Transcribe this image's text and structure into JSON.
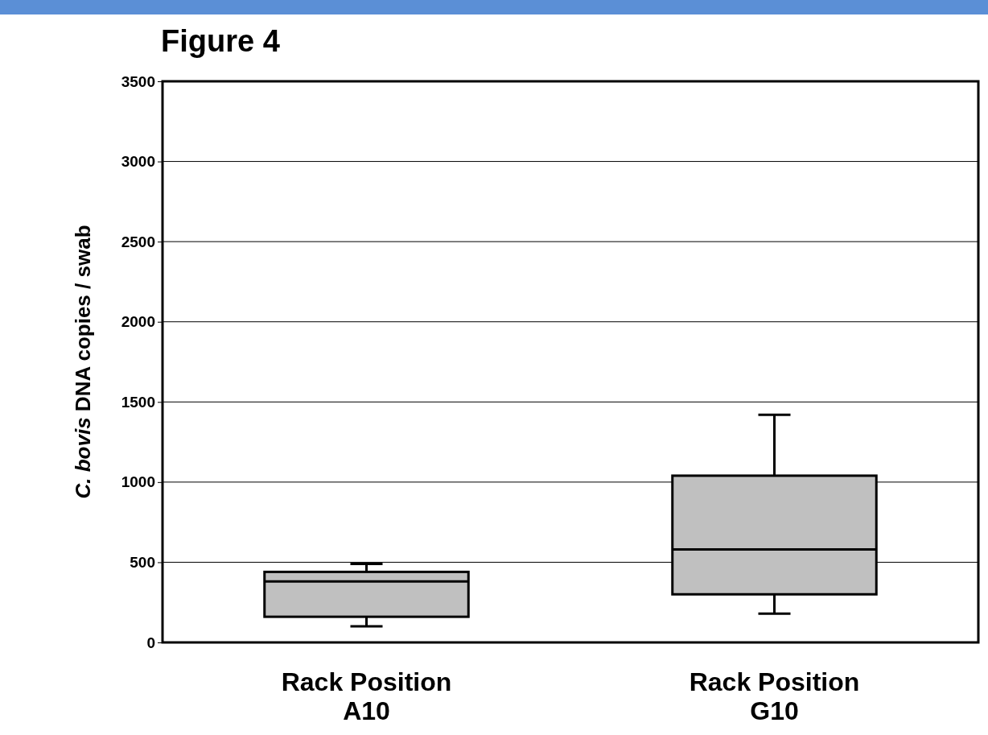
{
  "chart_data": {
    "type": "box",
    "title": "Figure 4",
    "ylabel": "C. bovis DNA copies / swab",
    "categories": [
      "Rack Position\nA10",
      "Rack Position\nG10"
    ],
    "boxes": [
      {
        "low": 100,
        "q1": 160,
        "median": 380,
        "q3": 440,
        "high": 490
      },
      {
        "low": 180,
        "q1": 300,
        "median": 580,
        "q3": 1040,
        "high": 1420
      }
    ],
    "color": "#c0c0c0",
    "ylim": [
      0,
      3500
    ],
    "yticks": [
      0,
      500,
      1000,
      1500,
      2000,
      2500,
      3000,
      3500
    ],
    "grid": "y"
  }
}
